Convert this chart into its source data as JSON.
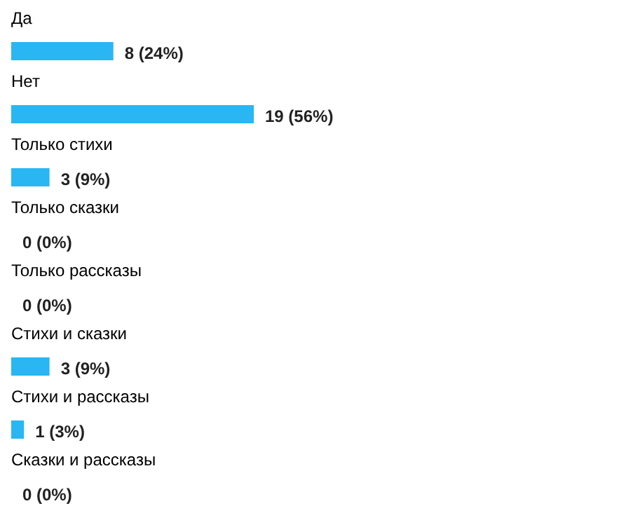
{
  "chart_data": {
    "type": "bar",
    "orientation": "horizontal",
    "color": "#29b6f2",
    "categories": [
      "Да",
      "Нет",
      "Только стихи",
      "Только сказки",
      "Только рассказы",
      "Стихи и сказки",
      "Стихи и рассказы",
      "Сказки и рассказы"
    ],
    "values": [
      8,
      19,
      3,
      0,
      0,
      3,
      1,
      0
    ],
    "value_labels": [
      "8 (24%)",
      "19 (56%)",
      "3 (9%)",
      "0 (0%)",
      "0 (0%)",
      "3 (9%)",
      "1 (3%)",
      "0 (0%)"
    ]
  }
}
